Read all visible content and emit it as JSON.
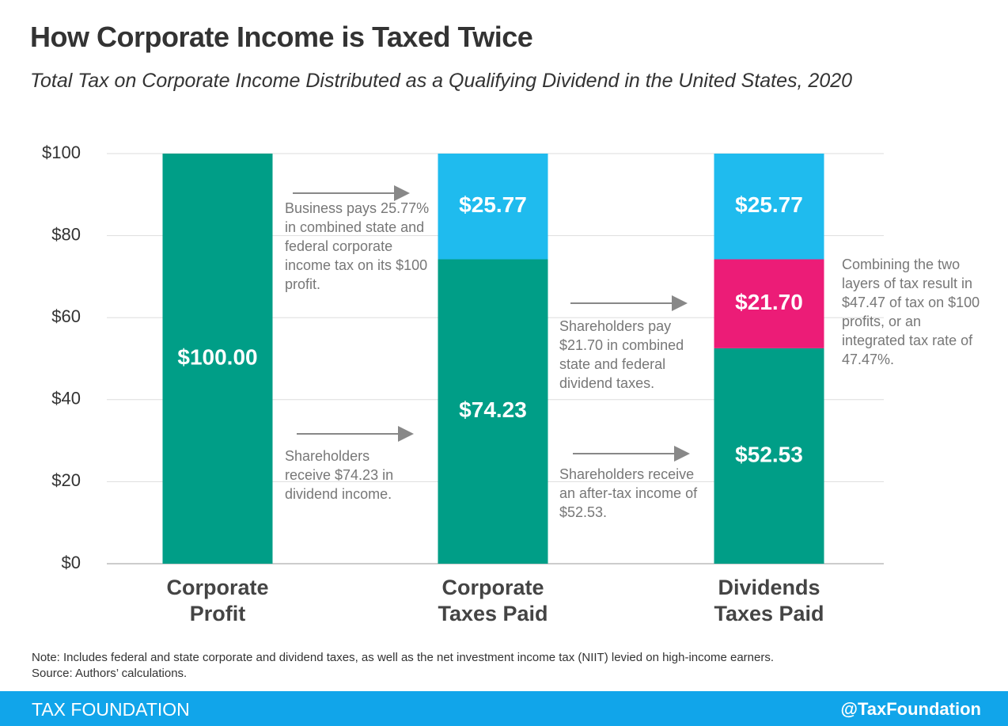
{
  "chart_data": {
    "type": "stacked_bar",
    "title": "How Corporate Income is Taxed Twice",
    "subtitle": "Total Tax on Corporate Income Distributed as a Qualifying Dividend in the United States, 2020",
    "categories": [
      "Corporate Profit",
      "Corporate Taxes Paid",
      "Dividends Taxes Paid"
    ],
    "series": [
      {
        "color": "#009e87",
        "values": [
          100,
          74.23,
          52.53
        ],
        "value_labels": [
          "$100.00",
          "$74.23",
          "$52.53"
        ]
      },
      {
        "color": "#ec1c77",
        "values": [
          null,
          null,
          21.7
        ],
        "value_labels": [
          null,
          null,
          "$21.70"
        ]
      },
      {
        "color": "#1fbbee",
        "values": [
          null,
          25.77,
          25.77
        ],
        "value_labels": [
          null,
          "$25.77",
          "$25.77"
        ]
      }
    ],
    "ylim": [
      0,
      100
    ],
    "yticks": [
      {
        "value": 0,
        "label": "$0"
      },
      {
        "value": 20,
        "label": "$20"
      },
      {
        "value": 40,
        "label": "$40"
      },
      {
        "value": 60,
        "label": "$60"
      },
      {
        "value": 80,
        "label": "$80"
      },
      {
        "value": 100,
        "label": "$100"
      }
    ],
    "grid": true,
    "annotations": [
      "Business pays 25.77% in combined state and federal corporate income tax on its $100 profit.",
      "Shareholders receive $74.23 in dividend income.",
      "Shareholders pay $21.70 in combined state and federal dividend taxes.",
      "Shareholders receive an after-tax income of $52.53.",
      "Combining the two layers of tax result in $47.47 of tax on $100 profits, or an integrated tax rate of 47.47%."
    ],
    "note": "Note: Includes federal and state corporate and dividend taxes, as well as the net investment income tax (NIIT) levied on high-income earners.",
    "source": "Source: Authors’ calculations.",
    "brand": "TAX FOUNDATION",
    "handle": "@TaxFoundation"
  }
}
